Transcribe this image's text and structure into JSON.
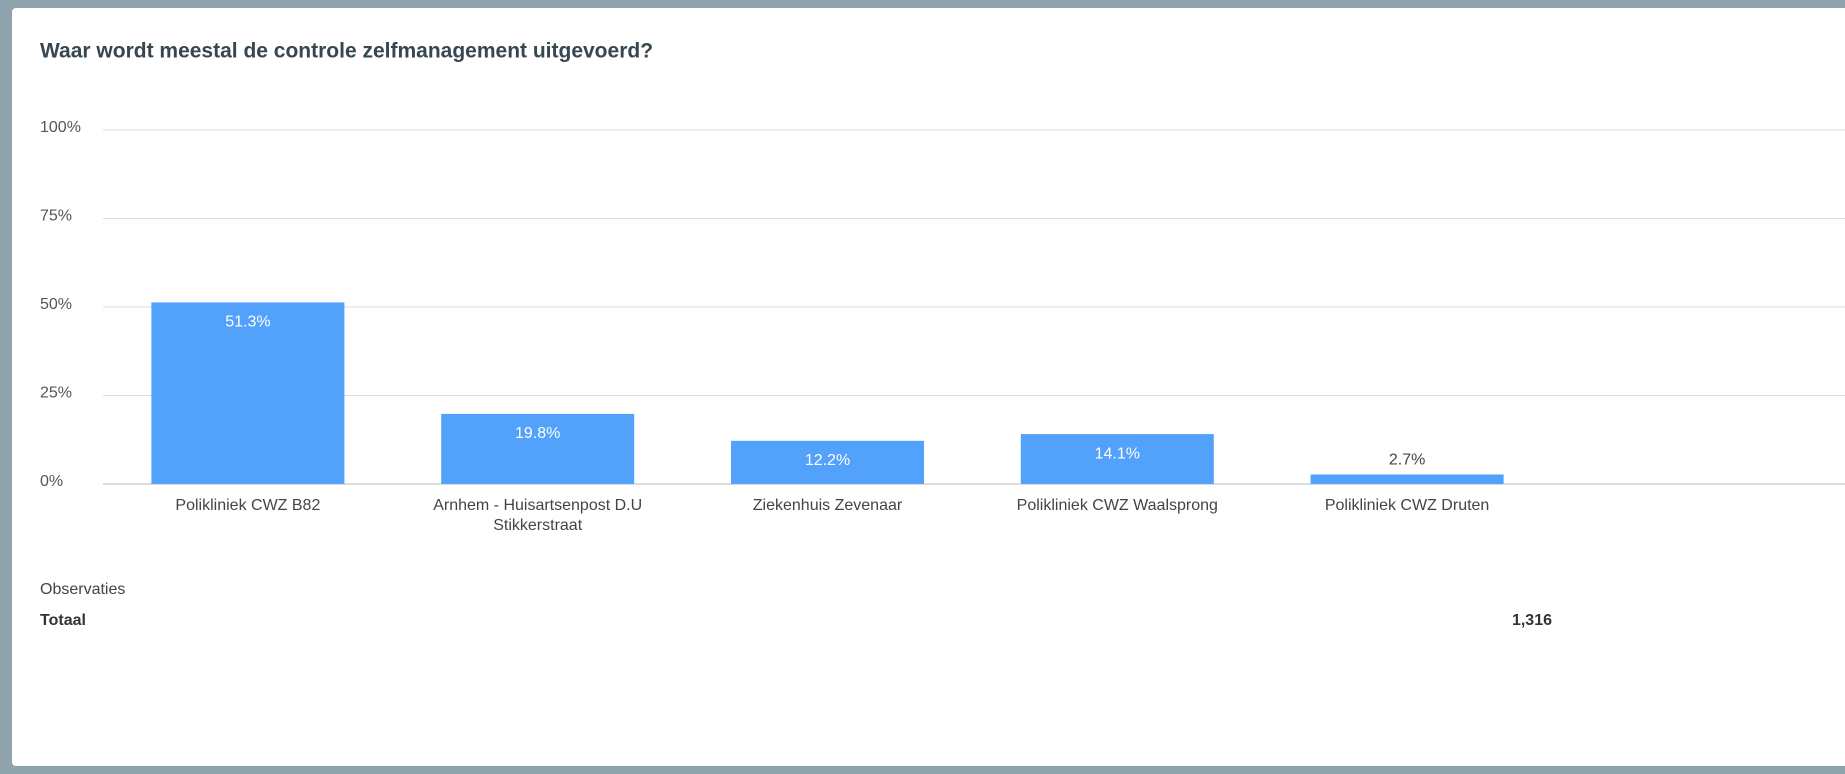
{
  "chart_data": {
    "type": "bar",
    "title": "Waar wordt meestal de controle zelfmanagement uitgevoerd?",
    "categories": [
      "Polikliniek CWZ B82",
      "Arnhem - Huisartsenpost D.U Stikkerstraat",
      "Ziekenhuis Zevenaar",
      "Polikliniek CWZ Waalsprong",
      "Polikliniek CWZ Druten"
    ],
    "values": [
      51.3,
      19.8,
      12.2,
      14.1,
      2.7
    ],
    "value_labels": [
      "51.3%",
      "19.8%",
      "12.2%",
      "14.1%",
      "2.7%"
    ],
    "color": "#52a2fc",
    "ylim": [
      0,
      100
    ],
    "yticks": [
      {
        "value": 0,
        "label": "0%"
      },
      {
        "value": 25,
        "label": "25%"
      },
      {
        "value": 50,
        "label": "50%"
      },
      {
        "value": 75,
        "label": "75%"
      },
      {
        "value": 100,
        "label": "100%"
      }
    ],
    "grid": true
  },
  "footer": {
    "label": "Observaties",
    "total_label": "Totaal",
    "total": "1,316"
  }
}
